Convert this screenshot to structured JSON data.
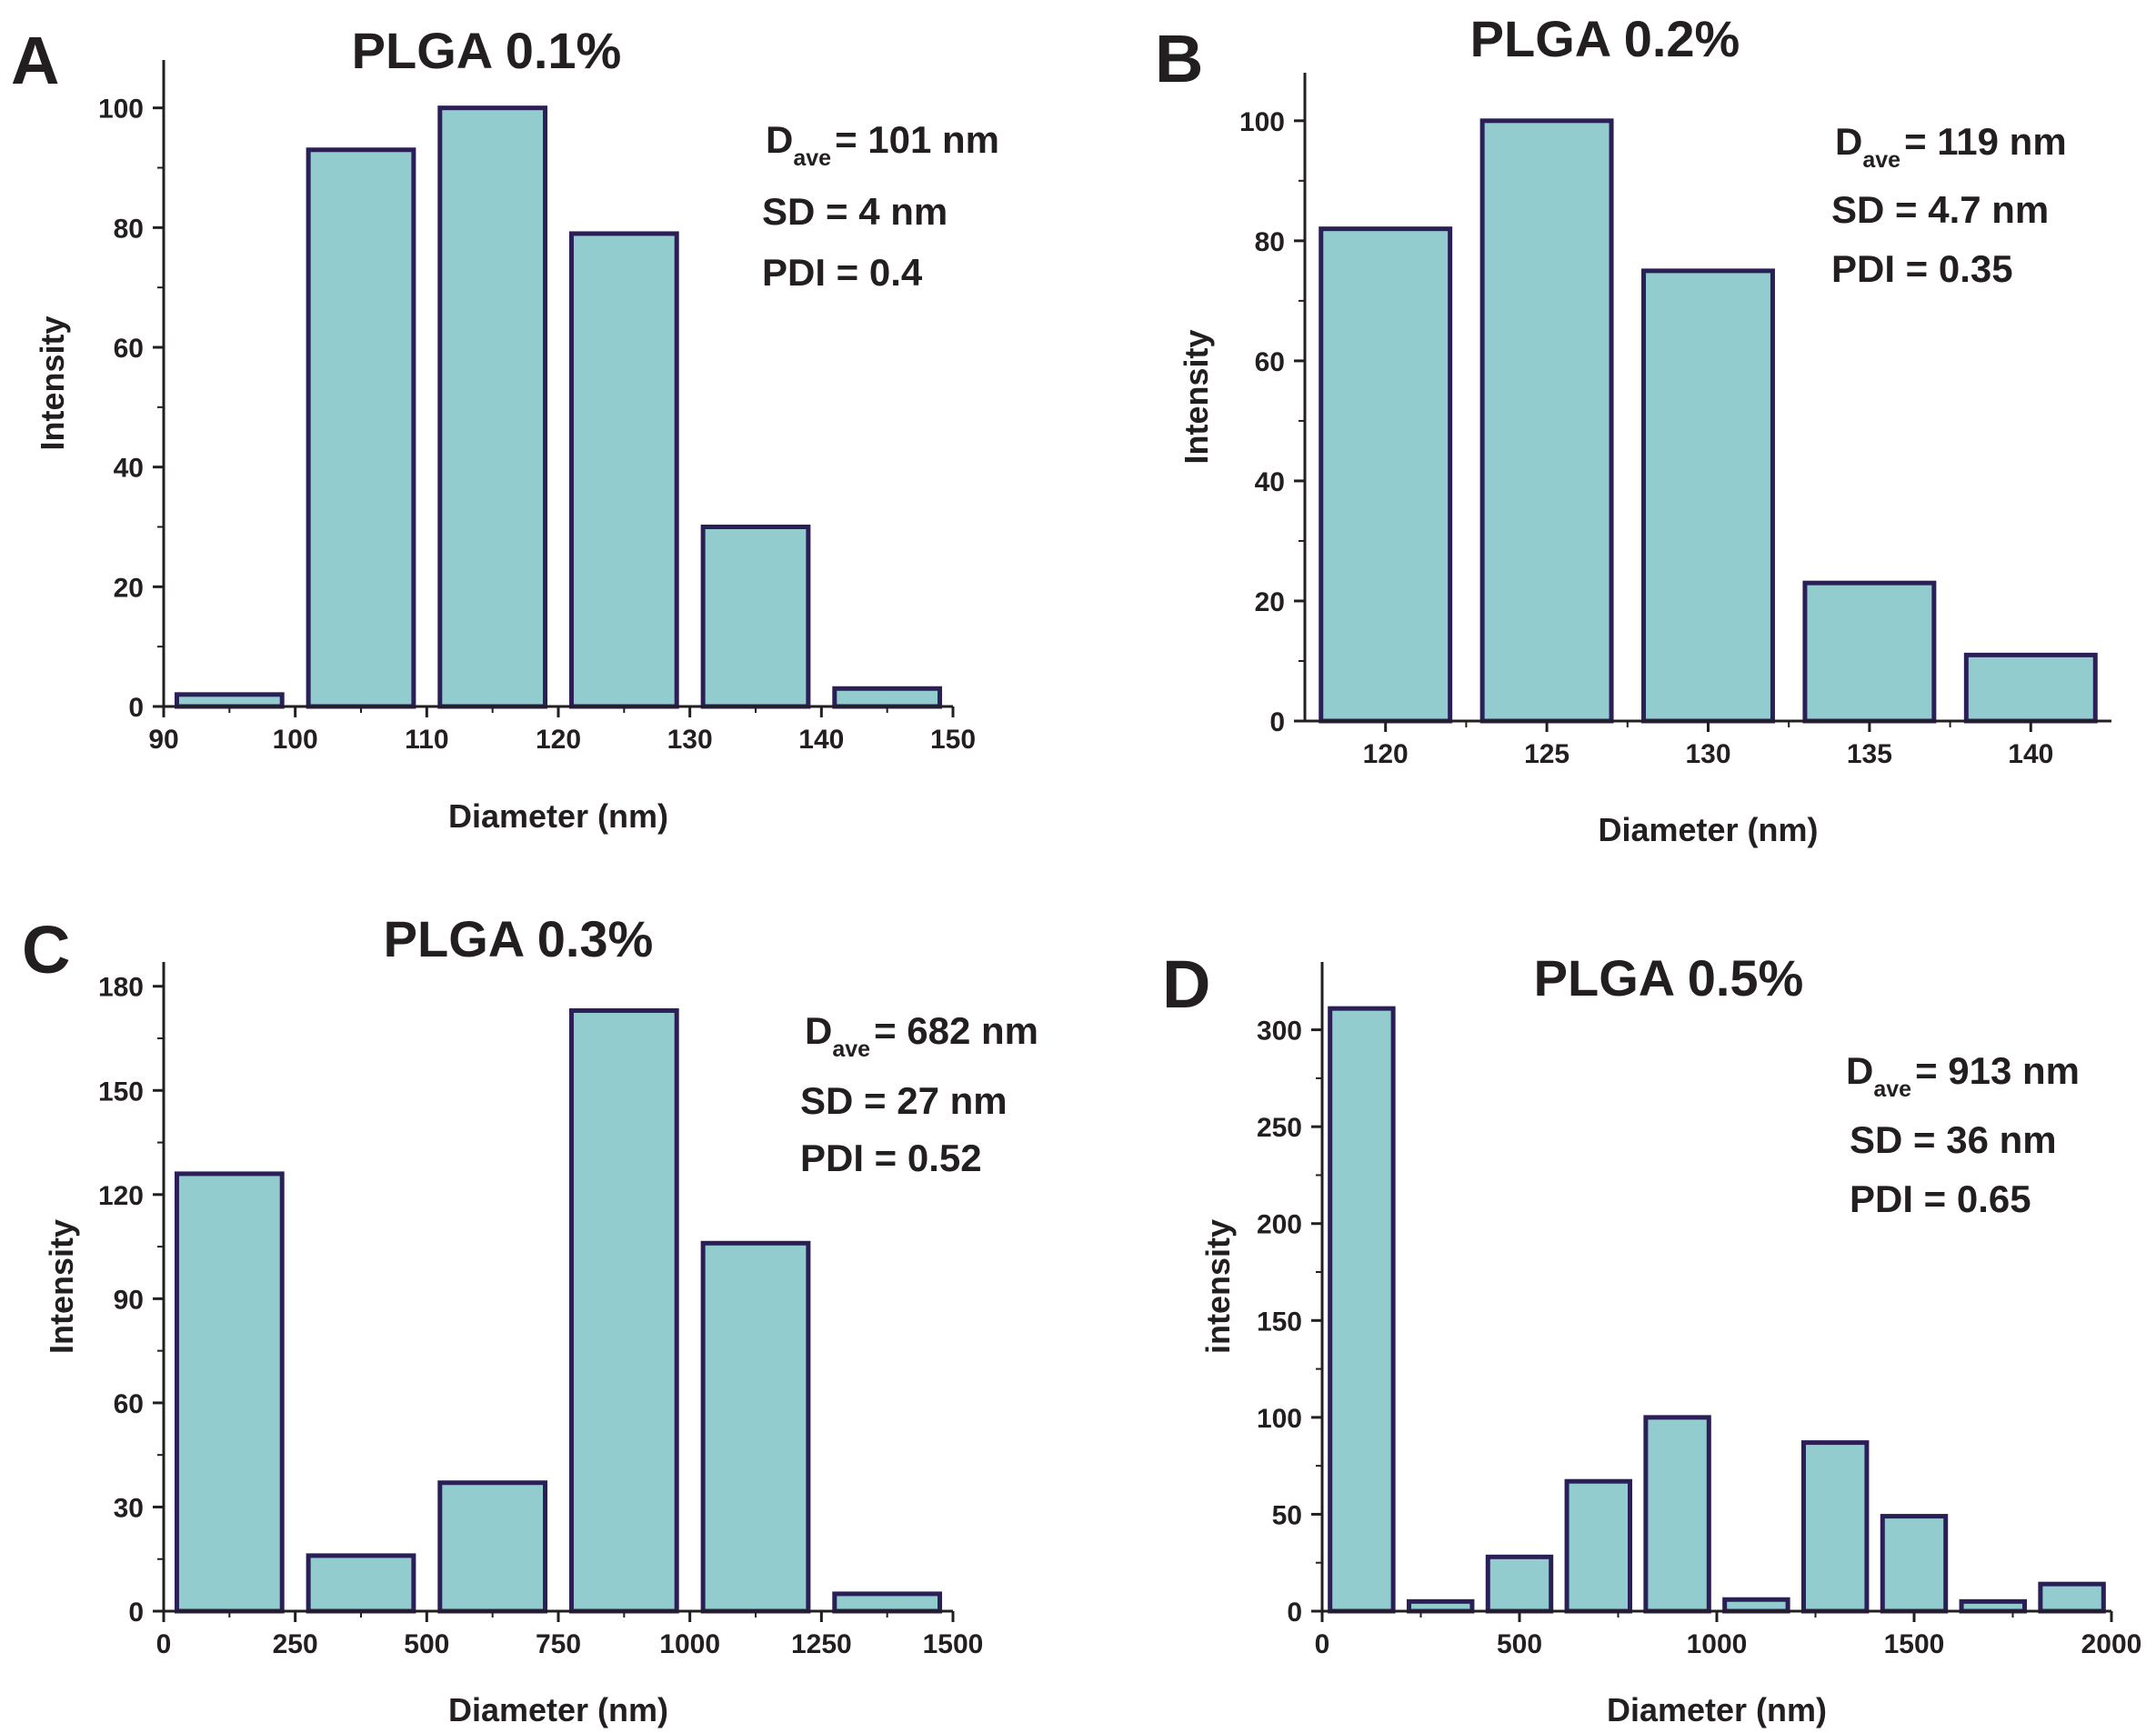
{
  "colors": {
    "bar_fill": "#93cccf",
    "bar_edge": "#2b1f57",
    "axis": "#231f20",
    "text": "#231f20"
  },
  "chart_data": [
    {
      "panel": "A",
      "type": "bar",
      "title": "PLGA 0.1%",
      "xlabel": "Diameter (nm)",
      "ylabel": "Intensity",
      "xlim": [
        90,
        150
      ],
      "ylim": [
        0,
        108
      ],
      "xticks": [
        90,
        100,
        110,
        120,
        130,
        140,
        150
      ],
      "yticks": [
        0,
        20,
        40,
        60,
        80,
        100
      ],
      "bars": [
        {
          "start": 91,
          "end": 99,
          "value": 2
        },
        {
          "start": 101,
          "end": 109,
          "value": 93
        },
        {
          "start": 111,
          "end": 119,
          "value": 100
        },
        {
          "start": 121,
          "end": 129,
          "value": 79
        },
        {
          "start": 131,
          "end": 139,
          "value": 30
        },
        {
          "start": 141,
          "end": 149,
          "value": 3
        }
      ],
      "stats": {
        "d_main": "D",
        "d_sub": "ave",
        "d_value": "= 101 nm",
        "sd": "SD = 4 nm",
        "pdi": "PDI = 0.4"
      }
    },
    {
      "panel": "B",
      "type": "bar",
      "title": "PLGA 0.2%",
      "xlabel": "Diameter (nm)",
      "ylabel": "Intensity",
      "xlim": [
        117.5,
        142.5
      ],
      "ylim": [
        0,
        108
      ],
      "xticks": [
        120,
        125,
        130,
        135,
        140
      ],
      "yticks": [
        0,
        20,
        40,
        60,
        80,
        100
      ],
      "bars": [
        {
          "start": 118,
          "end": 122,
          "value": 82
        },
        {
          "start": 123,
          "end": 127,
          "value": 100
        },
        {
          "start": 128,
          "end": 132,
          "value": 75
        },
        {
          "start": 133,
          "end": 137,
          "value": 23
        },
        {
          "start": 138,
          "end": 142,
          "value": 11
        }
      ],
      "stats": {
        "d_main": "D",
        "d_sub": "ave",
        "d_value": "= 119 nm",
        "sd": "SD = 4.7 nm",
        "pdi": "PDI = 0.35"
      }
    },
    {
      "panel": "C",
      "type": "bar",
      "title": "PLGA 0.3%",
      "xlabel": "Diameter (nm)",
      "ylabel": "Intensity",
      "xlim": [
        0,
        1500
      ],
      "ylim": [
        0,
        187
      ],
      "xticks": [
        0,
        250,
        500,
        750,
        1000,
        1250,
        1500
      ],
      "yticks": [
        0,
        30,
        60,
        90,
        120,
        150,
        180
      ],
      "bars": [
        {
          "start": 25,
          "end": 225,
          "value": 126
        },
        {
          "start": 275,
          "end": 475,
          "value": 16
        },
        {
          "start": 525,
          "end": 725,
          "value": 37
        },
        {
          "start": 775,
          "end": 975,
          "value": 173
        },
        {
          "start": 1025,
          "end": 1225,
          "value": 106
        },
        {
          "start": 1275,
          "end": 1475,
          "value": 5
        }
      ],
      "stats": {
        "d_main": "D",
        "d_sub": "ave",
        "d_value": "= 682 nm",
        "sd": "SD = 27 nm",
        "pdi": "PDI = 0.52"
      }
    },
    {
      "panel": "D",
      "type": "bar",
      "title": "PLGA 0.5%",
      "xlabel": "Diameter (nm)",
      "ylabel": "intensity",
      "xlim": [
        0,
        2000
      ],
      "ylim": [
        0,
        335
      ],
      "xticks": [
        0,
        500,
        1000,
        1500,
        2000
      ],
      "yticks": [
        0,
        50,
        100,
        150,
        200,
        250,
        300
      ],
      "bars": [
        {
          "start": 20,
          "end": 180,
          "value": 311
        },
        {
          "start": 220,
          "end": 380,
          "value": 5
        },
        {
          "start": 420,
          "end": 580,
          "value": 28
        },
        {
          "start": 620,
          "end": 780,
          "value": 67
        },
        {
          "start": 820,
          "end": 980,
          "value": 100
        },
        {
          "start": 1020,
          "end": 1180,
          "value": 6
        },
        {
          "start": 1220,
          "end": 1380,
          "value": 87
        },
        {
          "start": 1420,
          "end": 1580,
          "value": 49
        },
        {
          "start": 1620,
          "end": 1780,
          "value": 5
        },
        {
          "start": 1820,
          "end": 1980,
          "value": 14
        }
      ],
      "stats": {
        "d_main": "D",
        "d_sub": "ave",
        "d_value": "= 913 nm",
        "sd": "SD = 36 nm",
        "pdi": "PDI = 0.65"
      }
    }
  ]
}
